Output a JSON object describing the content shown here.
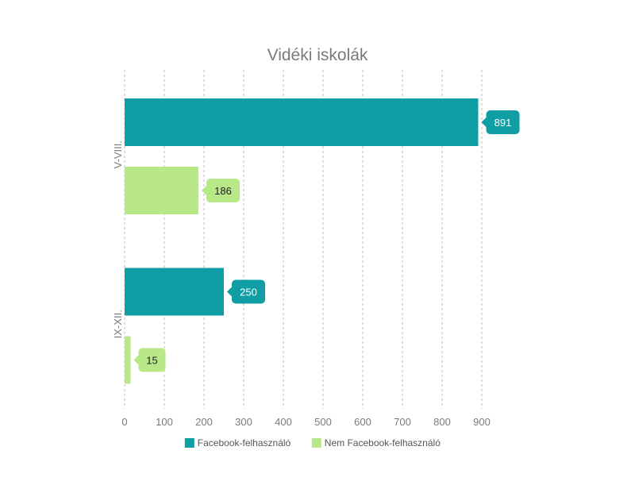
{
  "chart_data": {
    "type": "bar",
    "orientation": "horizontal",
    "title": "Vidéki iskolák",
    "categories": [
      "V-VIII.",
      "IX-XII."
    ],
    "series": [
      {
        "name": "Facebook-felhasználó",
        "values": [
          891,
          250
        ],
        "color": "#0e9ea3"
      },
      {
        "name": "Nem Facebook-felhasználó",
        "values": [
          186,
          15
        ],
        "color": "#b9e888"
      }
    ],
    "xlim": [
      0,
      900
    ],
    "xticks": [
      "0",
      "100",
      "200",
      "300",
      "400",
      "500",
      "600",
      "700",
      "800",
      "900"
    ],
    "grid": true,
    "legend_position": "bottom",
    "data_labels": true
  }
}
